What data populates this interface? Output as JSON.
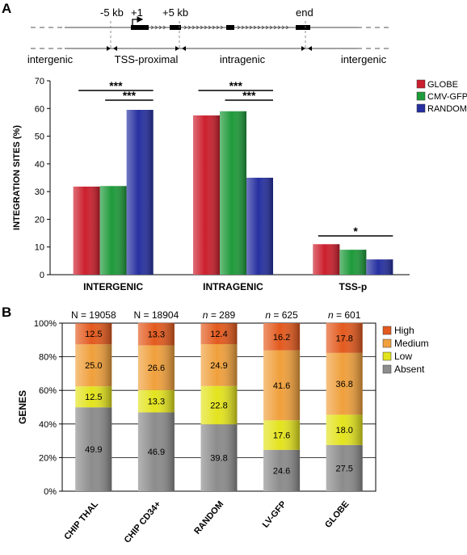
{
  "panel_a": {
    "label": "A",
    "gene_map": {
      "markers": [
        "-5 kb",
        "+1",
        "+5 kb",
        "end"
      ],
      "regions": [
        "intergenic",
        "TSS-proximal",
        "intragenic",
        "intergenic"
      ]
    }
  },
  "panel_b": {
    "label": "B"
  },
  "chart_data": [
    {
      "type": "bar",
      "title": "",
      "xlabel": "",
      "ylabel": "INTEGRATION SITES (%)",
      "categories": [
        "INTERGENIC",
        "INTRAGENIC",
        "TSS-p"
      ],
      "series": [
        {
          "name": "GLOBE",
          "values": [
            31.8,
            57.5,
            11.0
          ],
          "color": "#cc1f2d"
        },
        {
          "name": "CMV-GFP",
          "values": [
            32.0,
            59.0,
            9.0
          ],
          "color": "#1e9a3a"
        },
        {
          "name": "RANDOM",
          "values": [
            59.5,
            35.0,
            5.5
          ],
          "color": "#2630a0"
        }
      ],
      "ylim": [
        0,
        70
      ],
      "yticks": [
        0,
        10,
        20,
        30,
        40,
        50,
        60,
        70
      ],
      "legend": "top-right",
      "annotations": [
        {
          "text": "***",
          "category": 0,
          "from": 0,
          "to": 2,
          "y": 66.5
        },
        {
          "text": "***",
          "category": 0,
          "from": 1,
          "to": 2,
          "y": 63.0
        },
        {
          "text": "***",
          "category": 1,
          "from": 0,
          "to": 2,
          "y": 66.5
        },
        {
          "text": "***",
          "category": 1,
          "from": 1,
          "to": 2,
          "y": 63.0
        },
        {
          "text": "*",
          "category": 2,
          "from": 0,
          "to": 2,
          "y": 14.0
        }
      ]
    },
    {
      "type": "bar",
      "stacked": true,
      "title": "",
      "xlabel": "",
      "ylabel": "GENES",
      "categories": [
        "CHIP THAL",
        "CHIP CD34+",
        "RANDOM",
        "LV-GFP",
        "GLOBE"
      ],
      "counts": [
        {
          "prefix": "N",
          "value": "19058"
        },
        {
          "prefix": "N",
          "value": "18904"
        },
        {
          "prefix": "n",
          "value": "289"
        },
        {
          "prefix": "n",
          "value": "625"
        },
        {
          "prefix": "n",
          "value": "601"
        }
      ],
      "series": [
        {
          "name": "Absent",
          "values": [
            49.9,
            46.9,
            39.8,
            24.6,
            27.5
          ],
          "color": "#8c8c8c"
        },
        {
          "name": "Low",
          "values": [
            12.5,
            13.3,
            22.8,
            17.6,
            18.0
          ],
          "color": "#e3e31e"
        },
        {
          "name": "Medium",
          "values": [
            25.0,
            26.6,
            24.9,
            41.6,
            36.8
          ],
          "color": "#f0a03c"
        },
        {
          "name": "High",
          "values": [
            12.5,
            13.3,
            12.4,
            16.2,
            17.8
          ],
          "color": "#e35a1e"
        }
      ],
      "ylim": [
        0,
        100
      ],
      "yticks": [
        "0%",
        "20%",
        "40%",
        "60%",
        "80%",
        "100%"
      ],
      "legend": "right"
    }
  ]
}
